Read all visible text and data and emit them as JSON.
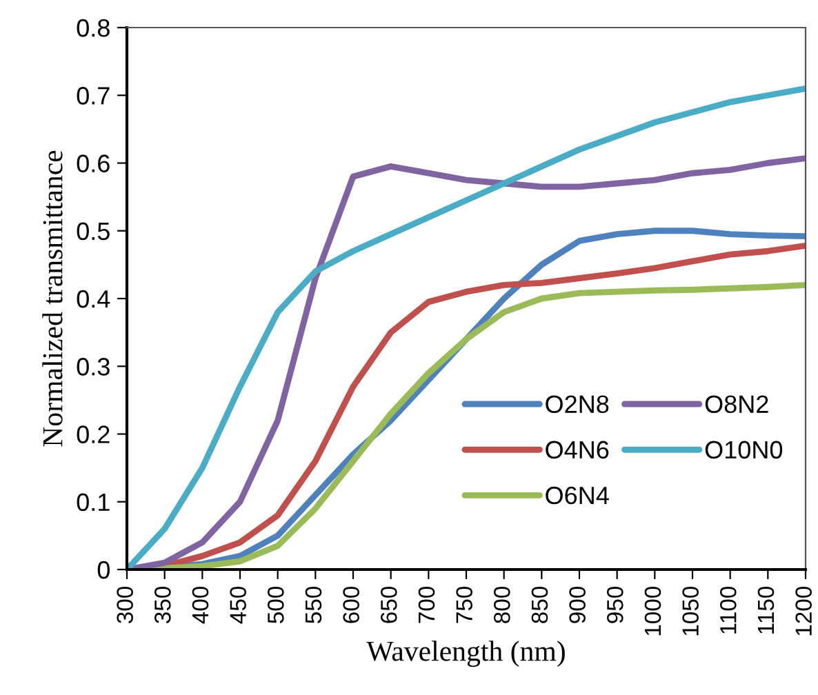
{
  "chart_data": {
    "type": "line",
    "xlabel": "Wavelength (nm)",
    "ylabel": "Normalized transmittance",
    "x": [
      300,
      350,
      400,
      450,
      500,
      550,
      600,
      650,
      700,
      750,
      800,
      850,
      900,
      950,
      1000,
      1050,
      1100,
      1150,
      1200
    ],
    "series": [
      {
        "name": "O2N8",
        "color": "#4f81bd",
        "values": [
          0,
          0.003,
          0.008,
          0.02,
          0.05,
          0.11,
          0.17,
          0.22,
          0.28,
          0.34,
          0.4,
          0.45,
          0.485,
          0.495,
          0.5,
          0.5,
          0.495,
          0.493,
          0.492
        ]
      },
      {
        "name": "O4N6",
        "color": "#c0504d",
        "values": [
          0,
          0.005,
          0.02,
          0.04,
          0.08,
          0.16,
          0.27,
          0.35,
          0.395,
          0.41,
          0.42,
          0.423,
          0.43,
          0.437,
          0.445,
          0.455,
          0.465,
          0.47,
          0.478
        ]
      },
      {
        "name": "O6N4",
        "color": "#9bbb59",
        "values": [
          0,
          0.002,
          0.005,
          0.012,
          0.035,
          0.09,
          0.16,
          0.23,
          0.29,
          0.34,
          0.38,
          0.4,
          0.408,
          0.41,
          0.412,
          0.413,
          0.415,
          0.417,
          0.42
        ]
      },
      {
        "name": "O8N2",
        "color": "#8064a2",
        "values": [
          0,
          0.01,
          0.04,
          0.1,
          0.22,
          0.43,
          0.58,
          0.595,
          0.585,
          0.575,
          0.57,
          0.565,
          0.565,
          0.57,
          0.575,
          0.585,
          0.59,
          0.6,
          0.607
        ]
      },
      {
        "name": "O10N0",
        "color": "#4bacc6",
        "values": [
          0,
          0.06,
          0.15,
          0.27,
          0.38,
          0.44,
          0.47,
          0.495,
          0.52,
          0.545,
          0.57,
          0.595,
          0.62,
          0.64,
          0.66,
          0.675,
          0.69,
          0.7,
          0.71
        ]
      }
    ],
    "xlim": [
      300,
      1200
    ],
    "xticks": [
      300,
      350,
      400,
      450,
      500,
      550,
      600,
      650,
      700,
      750,
      800,
      850,
      900,
      950,
      1000,
      1050,
      1100,
      1150,
      1200
    ],
    "ylim": [
      0,
      0.8
    ],
    "yticks": [
      0,
      0.1,
      0.2,
      0.3,
      0.4,
      0.5,
      0.6,
      0.7,
      0.8
    ],
    "grid": false,
    "legend": "bottom right",
    "marker": "none",
    "line_style": "solid"
  }
}
